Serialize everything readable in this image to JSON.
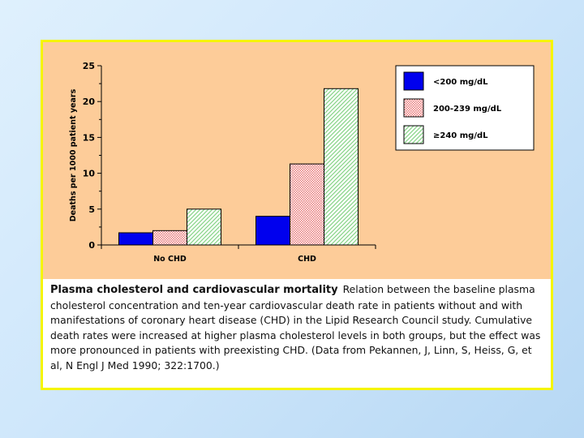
{
  "colors": {
    "background": "#c9e3fa",
    "frame_border": "#f5f500",
    "chart_bg": "#fdcc99",
    "series_low": "#0000ee",
    "series_mid_pattern": "#e87a7a",
    "series_high_pattern": "#86d486"
  },
  "chart_data": {
    "type": "bar",
    "categories": [
      "No CHD",
      "CHD"
    ],
    "series": [
      {
        "name": "<200 mg/dL",
        "values": [
          1.7,
          4.0
        ],
        "fill": "solid-blue"
      },
      {
        "name": "200-239 mg/dL",
        "values": [
          2.0,
          11.3
        ],
        "fill": "red-dot-pattern"
      },
      {
        "name": "≥240 mg/dL",
        "values": [
          5.0,
          21.8
        ],
        "fill": "green-hatch-pattern"
      }
    ],
    "ylabel": "Deaths per 1000 patient years",
    "xlabel": "",
    "ylim": [
      0,
      25
    ],
    "yticks": [
      0,
      5,
      10,
      15,
      20,
      25
    ],
    "legend": "top-right",
    "grid": false
  },
  "caption": {
    "title": "Plasma cholesterol and cardiovascular mortality",
    "text": "Relation between the baseline plasma cholesterol concentration and ten-year cardiovascular death rate in patients without and with manifestations of coronary heart disease (CHD) in the Lipid Research Council study. Cumulative death rates were increased at higher plasma cholesterol levels in both groups, but the effect was more pronounced in patients with preexisting CHD. (Data from Pekannen, J, Linn, S, Heiss, G, et al, N Engl J Med 1990; 322:1700.)"
  }
}
